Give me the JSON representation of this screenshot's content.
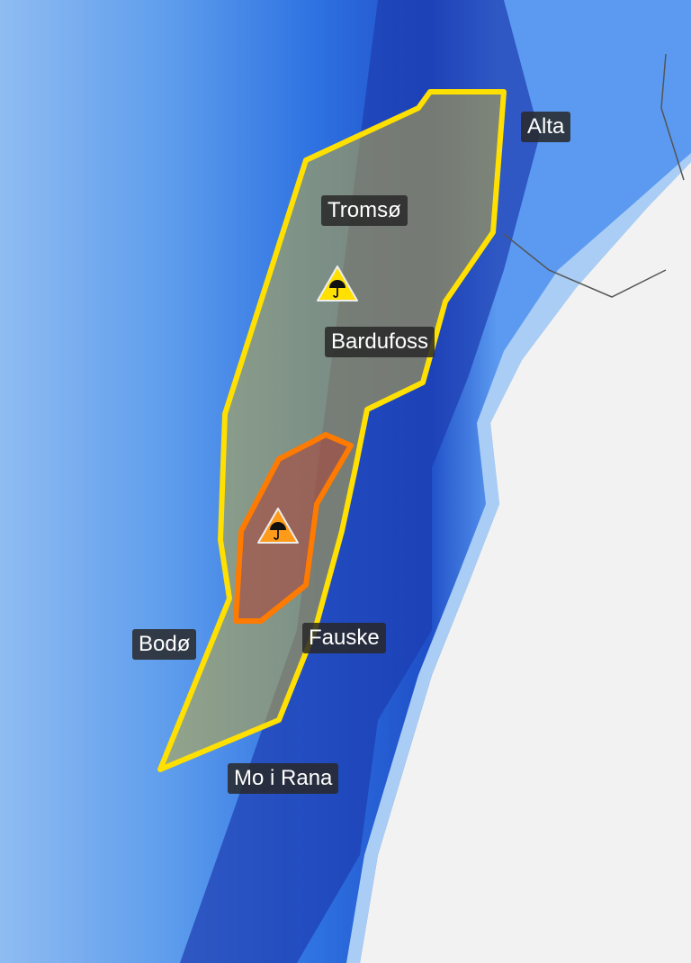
{
  "map": {
    "places": [
      {
        "name": "Alta"
      },
      {
        "name": "Tromsø"
      },
      {
        "name": "Bardufoss"
      },
      {
        "name": "Fauske"
      },
      {
        "name": "Bodø"
      },
      {
        "name": "Mo i Rana"
      }
    ],
    "warnings": [
      {
        "level": "yellow",
        "type": "rain",
        "icon": "umbrella-icon",
        "color": "#ffe000"
      },
      {
        "level": "orange",
        "type": "rain",
        "icon": "umbrella-icon",
        "color": "#ff7a00"
      }
    ],
    "colors": {
      "sea_light": "#7fb2f0",
      "precip_mid": "#2c6fe0",
      "precip_heavy": "#1a3fb8",
      "land_dry": "#f0f0f0"
    }
  }
}
